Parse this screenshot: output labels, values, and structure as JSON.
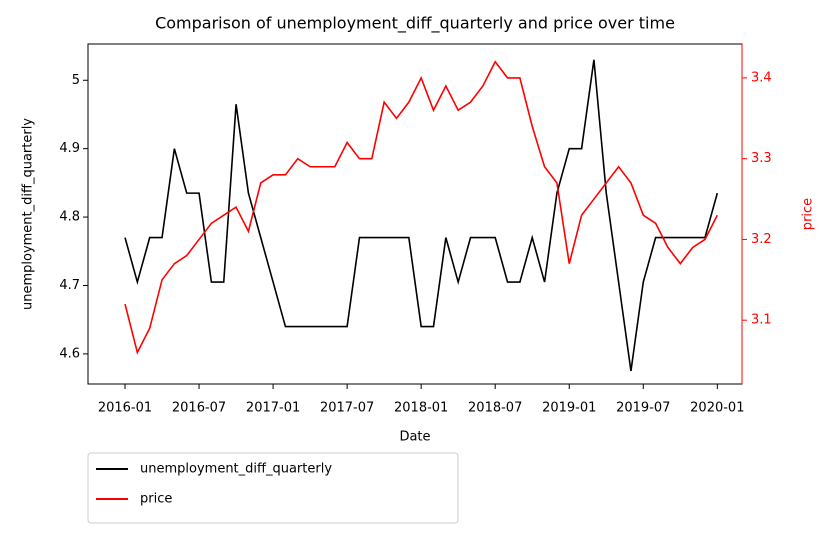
{
  "chart_data": {
    "type": "line",
    "title": "Comparison of unemployment_diff_quarterly and price over time",
    "x_label": "Date",
    "y_label": "unemployment_diff_quarterly",
    "y2_label": "price",
    "x": [
      "2016-01",
      "2016-02",
      "2016-03",
      "2016-04",
      "2016-05",
      "2016-06",
      "2016-07",
      "2016-08",
      "2016-09",
      "2016-10",
      "2016-11",
      "2016-12",
      "2017-01",
      "2017-02",
      "2017-03",
      "2017-04",
      "2017-05",
      "2017-06",
      "2017-07",
      "2017-08",
      "2017-09",
      "2017-10",
      "2017-11",
      "2017-12",
      "2018-01",
      "2018-02",
      "2018-03",
      "2018-04",
      "2018-05",
      "2018-06",
      "2018-07",
      "2018-08",
      "2018-09",
      "2018-10",
      "2018-11",
      "2018-12",
      "2019-01",
      "2019-02",
      "2019-03",
      "2019-04",
      "2019-05",
      "2019-06",
      "2019-07",
      "2019-08",
      "2019-09",
      "2019-10",
      "2019-11",
      "2019-12",
      "2020-01"
    ],
    "series": [
      {
        "name": "unemployment_diff_quarterly",
        "color": "#000000",
        "axis": "y",
        "values": [
          4.77,
          4.705,
          4.77,
          4.77,
          4.9,
          4.835,
          4.835,
          4.705,
          4.705,
          4.965,
          4.835,
          4.77,
          4.705,
          4.64,
          4.64,
          4.64,
          4.64,
          4.64,
          4.64,
          4.77,
          4.77,
          4.77,
          4.77,
          4.77,
          4.64,
          4.64,
          4.77,
          4.705,
          4.77,
          4.77,
          4.77,
          4.705,
          4.705,
          4.77,
          4.705,
          4.835,
          4.9,
          4.9,
          5.03,
          4.835,
          4.705,
          4.575,
          4.705,
          4.77,
          4.77,
          4.77,
          4.77,
          4.77,
          4.835
        ]
      },
      {
        "name": "price",
        "color": "#ff0000",
        "axis": "y2",
        "values": [
          3.12,
          3.06,
          3.09,
          3.15,
          3.17,
          3.18,
          3.2,
          3.22,
          3.23,
          3.24,
          3.21,
          3.27,
          3.28,
          3.28,
          3.3,
          3.29,
          3.29,
          3.29,
          3.32,
          3.3,
          3.3,
          3.37,
          3.35,
          3.37,
          3.4,
          3.36,
          3.39,
          3.36,
          3.37,
          3.39,
          3.42,
          3.4,
          3.4,
          3.34,
          3.29,
          3.27,
          3.17,
          3.23,
          3.25,
          3.27,
          3.29,
          3.27,
          3.23,
          3.22,
          3.19,
          3.17,
          3.19,
          3.2,
          3.23
        ]
      }
    ],
    "xlim": [
      "2015-10",
      "2020-03"
    ],
    "xticks": [
      "2016-01",
      "2016-07",
      "2017-01",
      "2017-07",
      "2018-01",
      "2018-07",
      "2019-01",
      "2019-07",
      "2020-01"
    ],
    "ylim": [
      4.556,
      5.053
    ],
    "yticks": [
      4.6,
      4.7,
      4.8,
      4.9,
      5.0
    ],
    "y2lim": [
      3.021,
      3.442
    ],
    "y2ticks": [
      3.1,
      3.2,
      3.3,
      3.4
    ],
    "legend": "below",
    "grid": false
  }
}
